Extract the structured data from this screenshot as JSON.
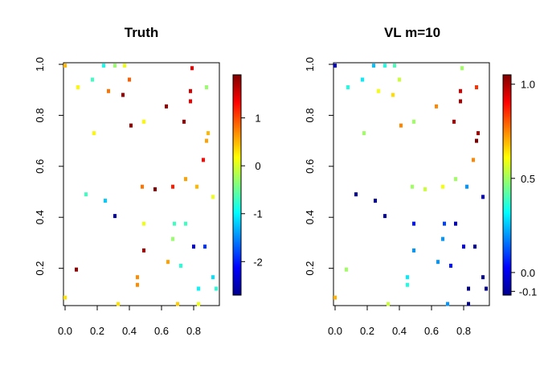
{
  "chart_data": [
    {
      "type": "scatter",
      "title": "Truth",
      "xlabel": "",
      "ylabel": "",
      "xlim": [
        0,
        0.95
      ],
      "ylim": [
        0.06,
        1.0
      ],
      "xticks": [
        "0.0",
        "0.2",
        "0.4",
        "0.6",
        "0.8"
      ],
      "yticks": [
        "0.2",
        "0.4",
        "0.6",
        "0.8",
        "1.0"
      ],
      "colorbar": {
        "min": -2.7,
        "max": 1.9,
        "ticks": [
          "1",
          "0",
          "-1",
          "-2"
        ]
      },
      "points": [
        {
          "x": 0.0,
          "y": 0.995,
          "v": 0.5
        },
        {
          "x": 0.24,
          "y": 0.995,
          "v": -0.9
        },
        {
          "x": 0.31,
          "y": 0.995,
          "v": -0.3
        },
        {
          "x": 0.37,
          "y": 0.995,
          "v": 0.1
        },
        {
          "x": 0.4,
          "y": 0.94,
          "v": 0.9
        },
        {
          "x": 0.17,
          "y": 0.94,
          "v": -0.7
        },
        {
          "x": 0.08,
          "y": 0.91,
          "v": 0.2
        },
        {
          "x": 0.27,
          "y": 0.895,
          "v": 0.8
        },
        {
          "x": 0.36,
          "y": 0.88,
          "v": 1.8
        },
        {
          "x": 0.79,
          "y": 0.985,
          "v": 1.4
        },
        {
          "x": 0.78,
          "y": 0.895,
          "v": 1.5
        },
        {
          "x": 0.88,
          "y": 0.91,
          "v": -0.3
        },
        {
          "x": 0.78,
          "y": 0.855,
          "v": 1.4
        },
        {
          "x": 0.63,
          "y": 0.835,
          "v": 1.8
        },
        {
          "x": 0.74,
          "y": 0.775,
          "v": 1.8
        },
        {
          "x": 0.49,
          "y": 0.775,
          "v": 0.2
        },
        {
          "x": 0.41,
          "y": 0.76,
          "v": 1.8
        },
        {
          "x": 0.18,
          "y": 0.73,
          "v": 0.2
        },
        {
          "x": 0.89,
          "y": 0.73,
          "v": 0.5
        },
        {
          "x": 0.88,
          "y": 0.7,
          "v": 0.6
        },
        {
          "x": 0.86,
          "y": 0.625,
          "v": 1.3
        },
        {
          "x": 0.75,
          "y": 0.55,
          "v": 0.6
        },
        {
          "x": 0.48,
          "y": 0.52,
          "v": 0.8
        },
        {
          "x": 0.67,
          "y": 0.52,
          "v": 1.2
        },
        {
          "x": 0.82,
          "y": 0.52,
          "v": 0.5
        },
        {
          "x": 0.56,
          "y": 0.51,
          "v": 1.9
        },
        {
          "x": 0.13,
          "y": 0.49,
          "v": -0.7
        },
        {
          "x": 0.92,
          "y": 0.48,
          "v": 0.1
        },
        {
          "x": 0.25,
          "y": 0.465,
          "v": -1.2
        },
        {
          "x": 0.31,
          "y": 0.405,
          "v": -2.6
        },
        {
          "x": 0.49,
          "y": 0.375,
          "v": 0.1
        },
        {
          "x": 0.68,
          "y": 0.375,
          "v": -0.7
        },
        {
          "x": 0.75,
          "y": 0.375,
          "v": -0.7
        },
        {
          "x": 0.67,
          "y": 0.315,
          "v": -0.3
        },
        {
          "x": 0.8,
          "y": 0.285,
          "v": -2.3
        },
        {
          "x": 0.87,
          "y": 0.285,
          "v": -1.9
        },
        {
          "x": 0.49,
          "y": 0.27,
          "v": 1.7
        },
        {
          "x": 0.64,
          "y": 0.225,
          "v": 0.6
        },
        {
          "x": 0.72,
          "y": 0.21,
          "v": -0.8
        },
        {
          "x": 0.07,
          "y": 0.195,
          "v": 1.8
        },
        {
          "x": 0.45,
          "y": 0.165,
          "v": 0.7
        },
        {
          "x": 0.92,
          "y": 0.165,
          "v": -1.1
        },
        {
          "x": 0.45,
          "y": 0.135,
          "v": 0.7
        },
        {
          "x": 0.83,
          "y": 0.12,
          "v": -1.0
        },
        {
          "x": 0.94,
          "y": 0.12,
          "v": -0.8
        },
        {
          "x": 0.0,
          "y": 0.085,
          "v": 0.3
        },
        {
          "x": 0.33,
          "y": 0.06,
          "v": 0.3
        },
        {
          "x": 0.7,
          "y": 0.06,
          "v": 0.4
        },
        {
          "x": 0.83,
          "y": 0.06,
          "v": 0.1
        }
      ]
    },
    {
      "type": "scatter",
      "title": "VL m=10",
      "xlabel": "",
      "ylabel": "",
      "xlim": [
        0,
        0.95
      ],
      "ylim": [
        0.06,
        1.0
      ],
      "xticks": [
        "0.0",
        "0.2",
        "0.4",
        "0.6",
        "0.8"
      ],
      "yticks": [
        "0.2",
        "0.4",
        "0.6",
        "0.8",
        "1.0"
      ],
      "colorbar": {
        "min": -0.12,
        "max": 1.05,
        "ticks": [
          "1.0",
          "0.5",
          "0.0",
          "-0.1"
        ]
      },
      "points": [
        {
          "x": 0.0,
          "y": 0.995,
          "v": -0.05
        },
        {
          "x": 0.24,
          "y": 0.995,
          "v": 0.25
        },
        {
          "x": 0.31,
          "y": 0.995,
          "v": 0.35
        },
        {
          "x": 0.37,
          "y": 0.995,
          "v": 0.4
        },
        {
          "x": 0.4,
          "y": 0.94,
          "v": 0.55
        },
        {
          "x": 0.17,
          "y": 0.94,
          "v": 0.3
        },
        {
          "x": 0.08,
          "y": 0.91,
          "v": 0.35
        },
        {
          "x": 0.27,
          "y": 0.895,
          "v": 0.6
        },
        {
          "x": 0.36,
          "y": 0.88,
          "v": 0.65
        },
        {
          "x": 0.79,
          "y": 0.985,
          "v": 0.5
        },
        {
          "x": 0.78,
          "y": 0.895,
          "v": 0.95
        },
        {
          "x": 0.88,
          "y": 0.91,
          "v": 0.85
        },
        {
          "x": 0.78,
          "y": 0.855,
          "v": 1.0
        },
        {
          "x": 0.63,
          "y": 0.835,
          "v": 0.75
        },
        {
          "x": 0.74,
          "y": 0.775,
          "v": 1.0
        },
        {
          "x": 0.49,
          "y": 0.775,
          "v": 0.5
        },
        {
          "x": 0.41,
          "y": 0.76,
          "v": 0.75
        },
        {
          "x": 0.18,
          "y": 0.73,
          "v": 0.5
        },
        {
          "x": 0.89,
          "y": 0.73,
          "v": 1.0
        },
        {
          "x": 0.88,
          "y": 0.7,
          "v": 1.05
        },
        {
          "x": 0.86,
          "y": 0.625,
          "v": 0.75
        },
        {
          "x": 0.75,
          "y": 0.55,
          "v": 0.5
        },
        {
          "x": 0.48,
          "y": 0.52,
          "v": 0.5
        },
        {
          "x": 0.67,
          "y": 0.52,
          "v": 0.6
        },
        {
          "x": 0.82,
          "y": 0.52,
          "v": 0.2
        },
        {
          "x": 0.56,
          "y": 0.51,
          "v": 0.55
        },
        {
          "x": 0.13,
          "y": 0.49,
          "v": -0.11
        },
        {
          "x": 0.92,
          "y": 0.48,
          "v": -0.05
        },
        {
          "x": 0.25,
          "y": 0.465,
          "v": -0.1
        },
        {
          "x": 0.31,
          "y": 0.405,
          "v": -0.1
        },
        {
          "x": 0.49,
          "y": 0.375,
          "v": 0.05
        },
        {
          "x": 0.68,
          "y": 0.375,
          "v": 0.1
        },
        {
          "x": 0.75,
          "y": 0.375,
          "v": -0.05
        },
        {
          "x": 0.67,
          "y": 0.315,
          "v": 0.2
        },
        {
          "x": 0.8,
          "y": 0.285,
          "v": 0.0
        },
        {
          "x": 0.87,
          "y": 0.285,
          "v": -0.1
        },
        {
          "x": 0.49,
          "y": 0.27,
          "v": 0.2
        },
        {
          "x": 0.64,
          "y": 0.225,
          "v": 0.2
        },
        {
          "x": 0.72,
          "y": 0.21,
          "v": 0.05
        },
        {
          "x": 0.07,
          "y": 0.195,
          "v": 0.5
        },
        {
          "x": 0.45,
          "y": 0.165,
          "v": 0.3
        },
        {
          "x": 0.92,
          "y": 0.165,
          "v": -0.11
        },
        {
          "x": 0.45,
          "y": 0.135,
          "v": 0.35
        },
        {
          "x": 0.83,
          "y": 0.12,
          "v": -0.12
        },
        {
          "x": 0.94,
          "y": 0.12,
          "v": -0.11
        },
        {
          "x": 0.0,
          "y": 0.085,
          "v": 0.7
        },
        {
          "x": 0.33,
          "y": 0.06,
          "v": 0.55
        },
        {
          "x": 0.7,
          "y": 0.06,
          "v": 0.2
        },
        {
          "x": 0.83,
          "y": 0.06,
          "v": -0.12
        }
      ]
    }
  ]
}
